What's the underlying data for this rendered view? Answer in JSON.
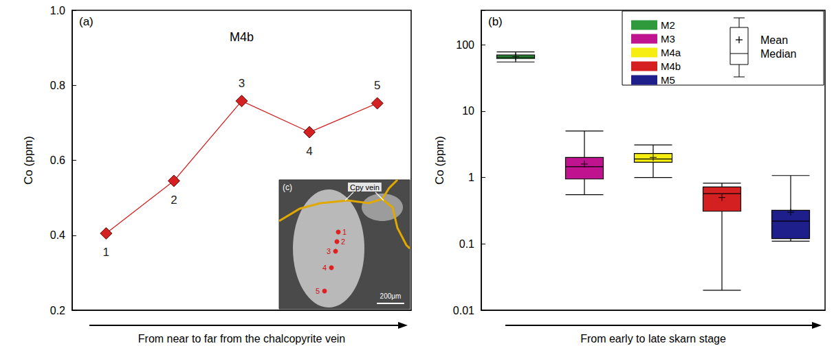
{
  "chart_data": [
    {
      "type": "line",
      "panel_label": "(a)",
      "title": "M4b",
      "x_title": "From near to far from the chalcopyrite vein",
      "y_title": "Co (ppm)",
      "categories": [
        "1",
        "2",
        "3",
        "4",
        "5"
      ],
      "values": [
        0.405,
        0.545,
        0.758,
        0.675,
        0.752
      ],
      "color": "#d42020",
      "marker": "diamond",
      "line_style": "solid",
      "ylim": [
        0.2,
        1.0
      ],
      "yticks": [
        0.2,
        0.4,
        0.6,
        0.8,
        {
          "value": 1.0,
          "label": "1.0"
        }
      ],
      "grid": false,
      "tick_labels": "y",
      "inset": {
        "label": "(c)",
        "annotation": "Cpy vein",
        "scale_bar": "200μm"
      }
    },
    {
      "type": "boxplot",
      "panel_label": "(b)",
      "x_title": "From early to late skarn stage",
      "y_title": "Co (ppm)",
      "log": "y",
      "ylim": [
        0.01,
        330
      ],
      "yticks": [
        0.01,
        0.1,
        1,
        10,
        100
      ],
      "grid": false,
      "tick_labels": "y",
      "legend": "upper right",
      "legend_key": {
        "mean": "Mean",
        "median": "Median"
      },
      "series": [
        {
          "name": "M2",
          "color": "#2f9a3c",
          "min": 55,
          "q1": 62,
          "median": 65,
          "q3": 70,
          "max": 78,
          "mean": 66
        },
        {
          "name": "M3",
          "color": "#c0138f",
          "min": 0.55,
          "q1": 0.95,
          "median": 1.45,
          "q3": 2.0,
          "max": 5.0,
          "mean": 1.6
        },
        {
          "name": "M4a",
          "color": "#f5ee10",
          "min": 1.0,
          "q1": 1.7,
          "median": 1.9,
          "q3": 2.3,
          "max": 3.1,
          "mean": 2.0
        },
        {
          "name": "M4b",
          "color": "#d42020",
          "min": 0.02,
          "q1": 0.31,
          "median": 0.57,
          "q3": 0.72,
          "max": 0.82,
          "mean": 0.5
        },
        {
          "name": "M5",
          "color": "#1f1f8c",
          "min": 0.11,
          "q1": 0.12,
          "median": 0.22,
          "q3": 0.32,
          "max": 1.07,
          "mean": 0.3
        }
      ]
    }
  ]
}
